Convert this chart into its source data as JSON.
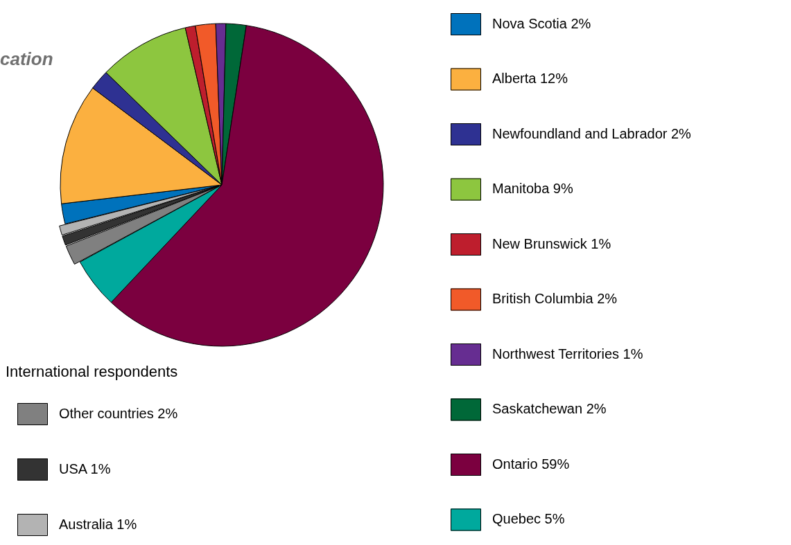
{
  "chart_data": {
    "type": "pie",
    "title": "cation",
    "legend_title": "International respondents",
    "categories": [
      "Nova Scotia 2%",
      "Alberta 12%",
      "Newfoundland and Labrador 2%",
      "Manitoba 9%",
      "New Brunswick 1%",
      "British Columbia 2%",
      "Northwest Territories 1%",
      "Saskatchewan 2%",
      "Ontario 59%",
      "Quebec 5%",
      "Other countries 2%",
      "USA 1%",
      "Australia 1%"
    ],
    "values": [
      2,
      12,
      2,
      9,
      1,
      2,
      1,
      2,
      59,
      5,
      2,
      1,
      1
    ],
    "colors": [
      "#0072bc",
      "#fbb040",
      "#2e3192",
      "#8dc63f",
      "#be1e2d",
      "#f15a29",
      "#662d91",
      "#006838",
      "#7b003f",
      "#00a99d",
      "#808080",
      "#333333",
      "#b3b3b3"
    ],
    "legend": "right"
  }
}
